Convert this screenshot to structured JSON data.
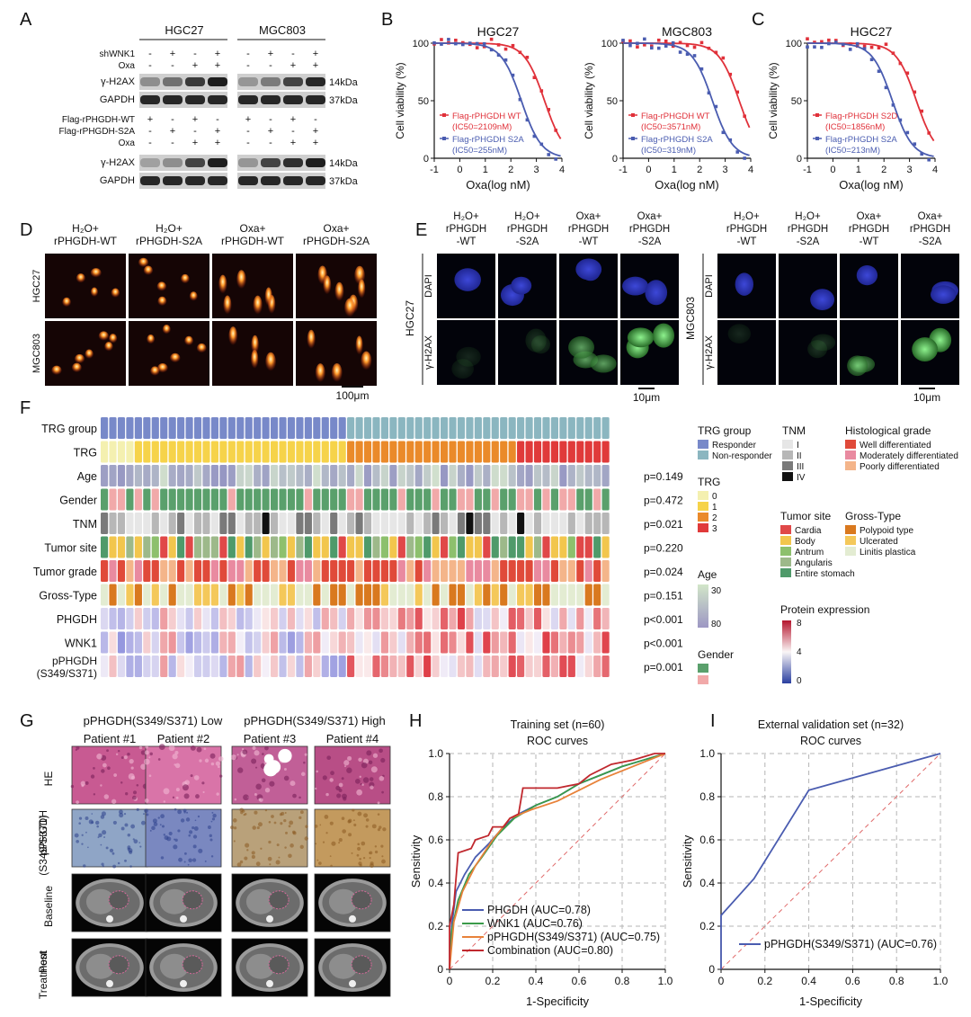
{
  "colors": {
    "red": "#e0313a",
    "blue": "#4a5cb0",
    "green": "#3a9a4a",
    "orange": "#e8823a",
    "responder": "#7889c9",
    "non_responder": "#8bb6c0",
    "trg": [
      "#f4f0b0",
      "#f6d34a",
      "#ea8a2a",
      "#e03a3a"
    ],
    "tnm": [
      "#e6e6e6",
      "#b7b7b7",
      "#7a7a7a",
      "#111111"
    ],
    "tumor_site": [
      "#e04848",
      "#f2c64d",
      "#8dc06d",
      "#9db98a",
      "#4f9a6a"
    ],
    "histo": [
      "#e04a3a",
      "#e98aa0",
      "#f4b58a"
    ],
    "gross": [
      "#d9791f",
      "#f4c85a",
      "#e3ecd2"
    ],
    "gender": [
      "#5aa06c",
      "#f1a9a9"
    ],
    "age": [
      "#d2e6c8",
      "#9d97c4"
    ]
  },
  "panel_letters": [
    "A",
    "B",
    "C",
    "D",
    "E",
    "F",
    "G",
    "H",
    "I"
  ],
  "panelA": {
    "cell_lines": [
      "HGC27",
      "MGC803"
    ],
    "top_rows": [
      {
        "label": "shWNK1",
        "marks": [
          "-",
          "+",
          "-",
          "+"
        ]
      },
      {
        "label": "Oxa",
        "marks": [
          "-",
          "-",
          "+",
          "+"
        ]
      }
    ],
    "bot_rows": [
      {
        "label": "Flag-rPHGDH-WT",
        "marks": [
          "+",
          "-",
          "+",
          "-"
        ]
      },
      {
        "label": "Flag-rPHGDH-S2A",
        "marks": [
          "-",
          "+",
          "-",
          "+"
        ]
      },
      {
        "label": "Oxa",
        "marks": [
          "-",
          "-",
          "+",
          "+"
        ]
      }
    ],
    "blot_labels": [
      "γ-H2AX",
      "GAPDH"
    ],
    "kda": [
      "14kDa",
      "37kDa"
    ]
  },
  "dose_response": {
    "xlabel": "Oxa(log nM)",
    "ylabel": "Cell viability (%)",
    "xticks": [
      "-1",
      "0",
      "1",
      "2",
      "3",
      "4"
    ],
    "yticks": [
      "0",
      "50",
      "100"
    ],
    "panels": [
      {
        "title": "HGC27",
        "legend": [
          "Flag-rPHGDH WT",
          "(IC50=2109nM)",
          "Flag-rPHGDH S2A",
          "(IC50=255nM)"
        ],
        "red_ic50": 3.32,
        "blue_ic50": 2.41
      },
      {
        "title": "MGC803",
        "legend": [
          "Flag-rPHGDH WT",
          "(IC50=3571nM)",
          "Flag-rPHGDH S2A",
          "(IC50=319nM)"
        ],
        "red_ic50": 3.55,
        "blue_ic50": 2.5
      },
      {
        "title": "HGC27",
        "legend": [
          "Flag-rPHGDH S2D",
          "(IC50=1856nM)",
          "Flag-rPHGDH S2A",
          "(IC50=213nM)"
        ],
        "red_ic50": 3.27,
        "blue_ic50": 2.33
      }
    ]
  },
  "panelD": {
    "columns": [
      "H₂O+\nrPHGDH-WT",
      "H₂O+\nrPHGDH-S2A",
      "Oxa+\nrPHGDH-WT",
      "Oxa+\nrPHGDH-S2A"
    ],
    "rows": [
      "HGC27",
      "MGC803"
    ],
    "scale": "100μm"
  },
  "panelE": {
    "columns": [
      "H₂O+\nrPHGDH\n-WT",
      "H₂O+\nrPHGDH\n-S2A",
      "Oxa+\nrPHGDH\n-WT",
      "Oxa+\nrPHGDH\n-S2A"
    ],
    "rows": [
      "DAPI",
      "γ-H2AX"
    ],
    "cell_lines": [
      "HGC27",
      "MGC803"
    ],
    "scale": "10μm"
  },
  "panelF": {
    "rows": [
      "TRG group",
      "TRG",
      "Age",
      "Gender",
      "TNM",
      "Tumor site",
      "Tumor grade",
      "Gross-Type",
      "PHGDH",
      "WNK1",
      "pPHGDH\n(S349/S371)"
    ],
    "pvalues": [
      "",
      "",
      "p=0.149",
      "p=0.472",
      "p=0.021",
      "p=0.220",
      "p=0.024",
      "p=0.151",
      "p<0.001",
      "p<0.001",
      "p=0.001"
    ],
    "legend_trg_group": {
      "title": "TRG group",
      "items": [
        "Responder",
        "Non-responder"
      ]
    },
    "legend_tnm": {
      "title": "TNM",
      "items": [
        "I",
        "II",
        "III",
        "IV"
      ]
    },
    "legend_histo": {
      "title": "Histological grade",
      "items": [
        "Well differentiated",
        "Moderately differentiated",
        "Poorly differentiated"
      ]
    },
    "legend_trg": {
      "title": "TRG",
      "items": [
        "0",
        "1",
        "2",
        "3"
      ]
    },
    "legend_site": {
      "title": "Tumor site",
      "items": [
        "Cardia",
        "Body",
        "Antrum",
        "Angularis",
        "Entire stomach"
      ]
    },
    "legend_gross": {
      "title": "Gross-Type",
      "items": [
        "Polypoid type",
        "Ulcerated",
        "Linitis plastica"
      ]
    },
    "legend_age": {
      "title": "Age",
      "items": [
        "30",
        "80"
      ]
    },
    "legend_gender": {
      "title": "Gender"
    },
    "legend_protein": {
      "title": "Protein expression",
      "items": [
        "8",
        "4",
        "0"
      ]
    }
  },
  "panelG": {
    "groups": [
      "pPHGDH(S349/S371) Low",
      "pPHGDH(S349/S371) High"
    ],
    "patients": [
      "Patient #1",
      "Patient #2",
      "Patient #3",
      "Patient #4"
    ],
    "rows": [
      "HE",
      "pPHGDH\n(S349/S371)",
      "Baseline",
      "Post\nTreatment"
    ]
  },
  "chart_data": [
    {
      "type": "line",
      "title": "Training set (n=60)",
      "subtitle": "ROC curves",
      "xlabel": "1-Specificity",
      "ylabel": "Sensitivity",
      "xlim": [
        0,
        1
      ],
      "ylim": [
        0,
        1
      ],
      "ticks": [
        "0",
        "0.2",
        "0.4",
        "0.6",
        "0.8",
        "1.0"
      ],
      "series": [
        {
          "name": "PHGDH (AUC=0.78)",
          "color": "#4a5cb0",
          "points": [
            [
              0,
              0
            ],
            [
              0.01,
              0.2
            ],
            [
              0.03,
              0.36
            ],
            [
              0.07,
              0.44
            ],
            [
              0.12,
              0.52
            ],
            [
              0.18,
              0.58
            ],
            [
              0.25,
              0.66
            ],
            [
              0.32,
              0.72
            ],
            [
              0.4,
              0.76
            ],
            [
              0.5,
              0.8
            ],
            [
              0.6,
              0.86
            ],
            [
              0.7,
              0.9
            ],
            [
              0.8,
              0.94
            ],
            [
              0.9,
              0.97
            ],
            [
              1,
              1
            ]
          ]
        },
        {
          "name": "WNK1 (AUC=0.76)",
          "color": "#3a9a4a",
          "points": [
            [
              0,
              0
            ],
            [
              0.01,
              0.18
            ],
            [
              0.04,
              0.32
            ],
            [
              0.09,
              0.44
            ],
            [
              0.15,
              0.52
            ],
            [
              0.22,
              0.62
            ],
            [
              0.3,
              0.7
            ],
            [
              0.4,
              0.76
            ],
            [
              0.5,
              0.8
            ],
            [
              0.6,
              0.86
            ],
            [
              0.7,
              0.9
            ],
            [
              0.8,
              0.94
            ],
            [
              0.9,
              0.97
            ],
            [
              1,
              1
            ]
          ]
        },
        {
          "name": "pPHGDH(S349/S371) (AUC=0.75)",
          "color": "#e8823a",
          "points": [
            [
              0,
              0
            ],
            [
              0.02,
              0.22
            ],
            [
              0.06,
              0.36
            ],
            [
              0.12,
              0.48
            ],
            [
              0.2,
              0.6
            ],
            [
              0.28,
              0.7
            ],
            [
              0.38,
              0.74
            ],
            [
              0.5,
              0.78
            ],
            [
              0.6,
              0.83
            ],
            [
              0.7,
              0.88
            ],
            [
              0.8,
              0.92
            ],
            [
              0.9,
              0.96
            ],
            [
              1,
              1
            ]
          ]
        },
        {
          "name": "Combination (AUC=0.80)",
          "color": "#c0282e",
          "points": [
            [
              0,
              0
            ],
            [
              0,
              0.2
            ],
            [
              0.02,
              0.3
            ],
            [
              0.04,
              0.54
            ],
            [
              0.1,
              0.56
            ],
            [
              0.12,
              0.6
            ],
            [
              0.18,
              0.62
            ],
            [
              0.2,
              0.66
            ],
            [
              0.25,
              0.66
            ],
            [
              0.28,
              0.7
            ],
            [
              0.32,
              0.72
            ],
            [
              0.34,
              0.84
            ],
            [
              0.4,
              0.84
            ],
            [
              0.5,
              0.84
            ],
            [
              0.6,
              0.86
            ],
            [
              0.65,
              0.9
            ],
            [
              0.75,
              0.95
            ],
            [
              0.85,
              0.97
            ],
            [
              0.95,
              1
            ],
            [
              1,
              1
            ]
          ]
        }
      ]
    },
    {
      "type": "line",
      "title": "External validation set (n=32)",
      "subtitle": "ROC curves",
      "xlabel": "1-Specificity",
      "ylabel": "Sensitivity",
      "xlim": [
        0,
        1
      ],
      "ylim": [
        0,
        1
      ],
      "ticks": [
        "0",
        "0.2",
        "0.4",
        "0.6",
        "0.8",
        "1.0"
      ],
      "series": [
        {
          "name": "pPHGDH(S349/S371) (AUC=0.76)",
          "color": "#4a5cb0",
          "points": [
            [
              0,
              0
            ],
            [
              0,
              0.25
            ],
            [
              0.15,
              0.42
            ],
            [
              0.4,
              0.83
            ],
            [
              1,
              1
            ]
          ]
        }
      ]
    }
  ]
}
